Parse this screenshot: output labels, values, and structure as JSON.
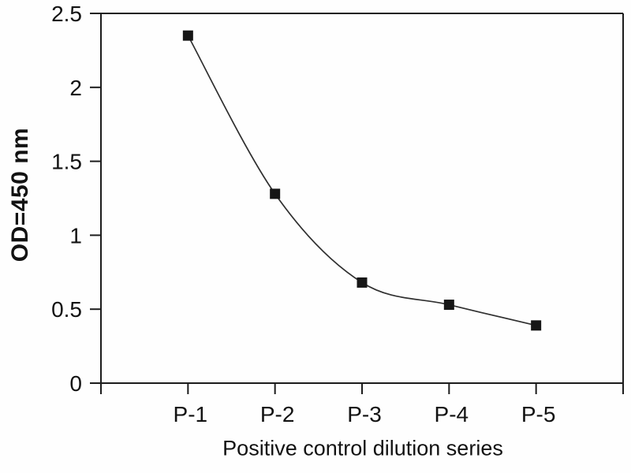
{
  "chart_data": {
    "type": "line",
    "title": "",
    "xlabel": "Positive control dilution series",
    "ylabel": "OD=450 nm",
    "categories": [
      "P-1",
      "P-2",
      "P-3",
      "P-4",
      "P-5"
    ],
    "values": [
      2.35,
      1.28,
      0.68,
      0.53,
      0.39
    ],
    "ylim": [
      0,
      2.5
    ],
    "y_tick_labels": [
      "0",
      "0.5",
      "1",
      "1.5",
      "2",
      "2.5"
    ],
    "grid": false,
    "legend": "none",
    "marker": "filled-square",
    "line_style": "smooth",
    "colors": {
      "line": "#2f2f2f",
      "marker": "#161616",
      "axis": "#1c1c1c",
      "text": "#121212",
      "background": "#ffffff"
    }
  }
}
